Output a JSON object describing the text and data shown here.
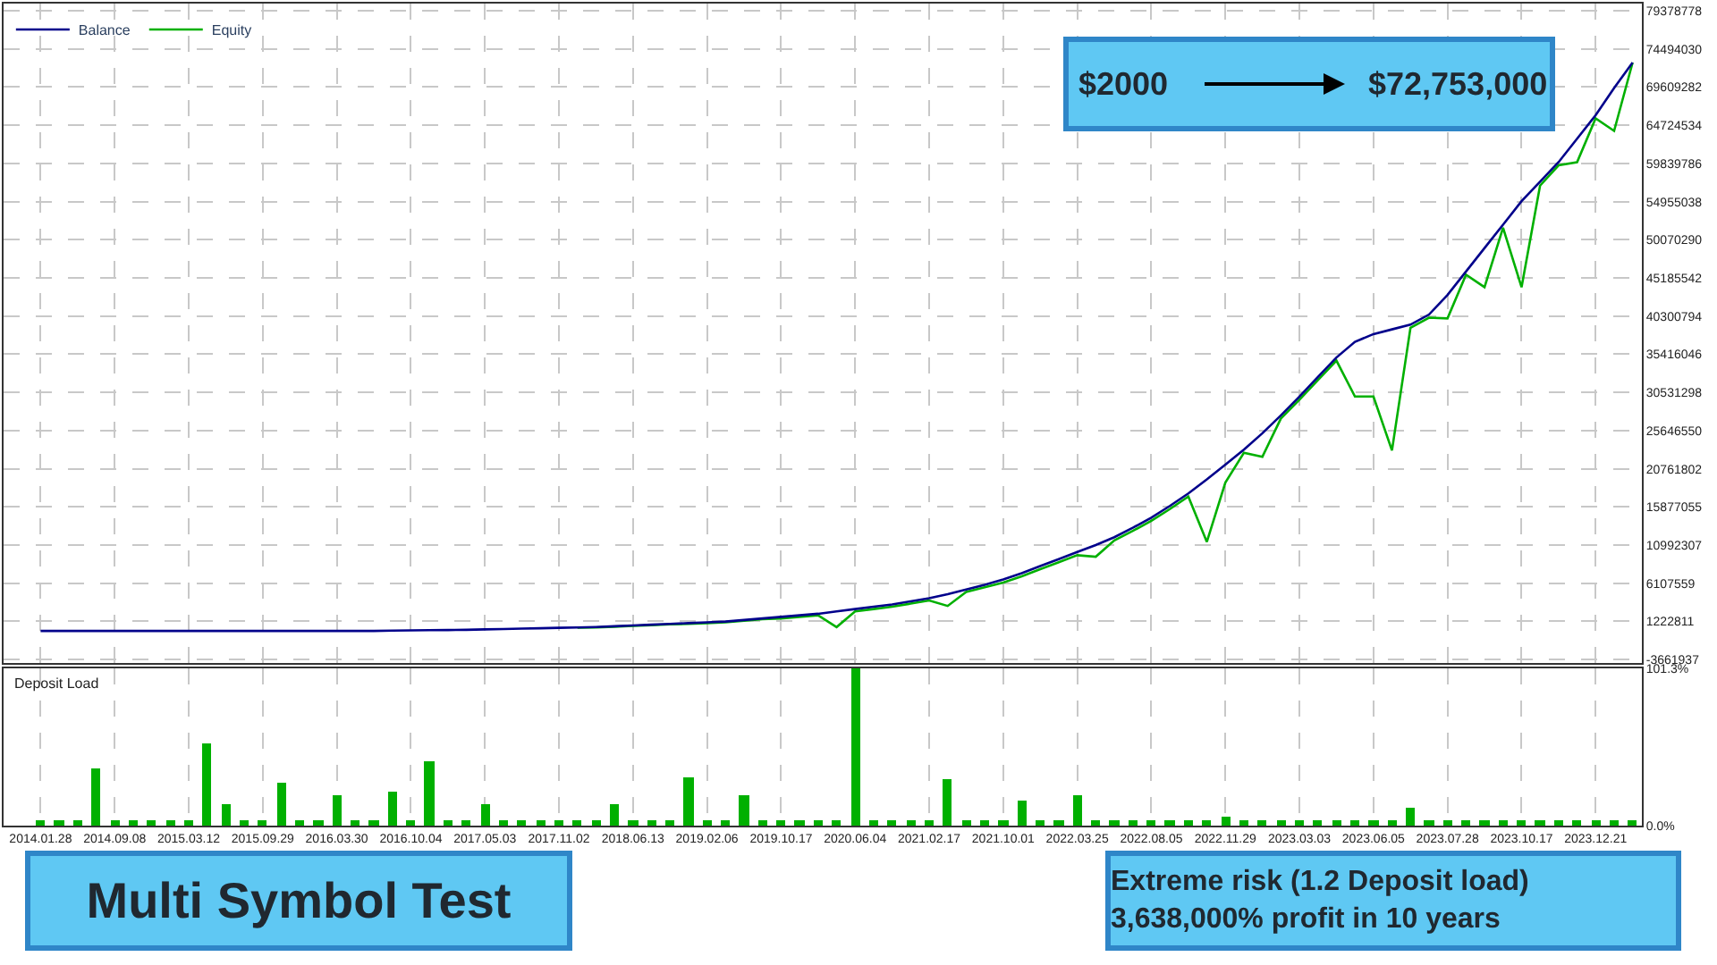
{
  "chart_data": [
    {
      "type": "line",
      "categories": [
        "2014.01.28",
        null,
        null,
        null,
        "2014.09.08",
        null,
        null,
        null,
        "2015.03.12",
        null,
        null,
        null,
        "2015.09.29",
        null,
        null,
        null,
        "2016.03.30",
        null,
        null,
        null,
        "2016.10.04",
        null,
        null,
        null,
        "2017.05.03",
        null,
        null,
        null,
        "2017.11.02",
        null,
        null,
        null,
        "2018.06.13",
        null,
        null,
        null,
        "2019.02.06",
        null,
        null,
        null,
        "2019.10.17",
        null,
        null,
        null,
        "2020.06.04",
        null,
        null,
        null,
        "2021.02.17",
        null,
        null,
        null,
        "2021.10.01",
        null,
        null,
        null,
        "2022.03.25",
        null,
        null,
        null,
        "2022.08.05",
        null,
        null,
        null,
        "2022.11.29",
        null,
        null,
        null,
        "2023.03.03",
        null,
        null,
        null,
        "2023.06.05",
        null,
        null,
        null,
        "2023.07.28",
        null,
        null,
        null,
        "2023.10.17",
        null,
        null,
        null,
        "2023.12.21",
        null,
        null
      ],
      "series": [
        {
          "name": "Balance",
          "color": "#00008b",
          "values": [
            2000,
            2000,
            2000,
            2000,
            2000,
            2000,
            2000,
            2000,
            2000,
            2000,
            2000,
            2000,
            2000,
            2000,
            2000,
            2000,
            2000,
            2000,
            2000,
            50000,
            80000,
            100000,
            120000,
            150000,
            200000,
            250000,
            300000,
            350000,
            400000,
            450000,
            500000,
            600000,
            700000,
            800000,
            900000,
            1000000,
            1100000,
            1200000,
            1400000,
            1600000,
            1800000,
            2000000,
            2200000,
            2500000,
            2800000,
            3100000,
            3400000,
            3800000,
            4200000,
            4700000,
            5300000,
            5900000,
            6600000,
            7400000,
            8300000,
            9200000,
            10100000,
            11000000,
            12000000,
            13200000,
            14500000,
            16000000,
            17600000,
            19400000,
            21300000,
            23200000,
            25300000,
            27600000,
            30000000,
            32500000,
            35000000,
            37000000,
            38000000,
            38600000,
            39200000,
            40500000,
            43000000,
            46000000,
            49000000,
            52000000,
            55000000,
            57500000,
            60000000,
            63000000,
            66000000,
            69500000,
            72753000
          ]
        },
        {
          "name": "Equity",
          "color": "#00b000",
          "values": [
            null,
            null,
            null,
            null,
            null,
            null,
            null,
            null,
            null,
            null,
            null,
            null,
            null,
            null,
            null,
            null,
            null,
            null,
            null,
            null,
            null,
            null,
            null,
            null,
            null,
            null,
            null,
            null,
            null,
            420000,
            450000,
            550000,
            650000,
            750000,
            850000,
            900000,
            1000000,
            1100000,
            1300000,
            1500000,
            1600000,
            1800000,
            2000000,
            500000,
            2500000,
            2800000,
            3100000,
            3500000,
            3900000,
            3200000,
            5000000,
            5600000,
            6200000,
            7000000,
            7900000,
            8800000,
            9700000,
            9500000,
            11600000,
            12800000,
            14100000,
            15600000,
            17200000,
            11400000,
            19000000,
            22800000,
            22300000,
            27200000,
            29600000,
            32100000,
            34600000,
            30000000,
            30000000,
            23100000,
            38800000,
            40100000,
            40000000,
            45600000,
            44000000,
            51600000,
            44000000,
            57000000,
            59600000,
            60000000,
            65600000,
            64000000,
            72753000
          ]
        }
      ],
      "ylim": [
        -4100000,
        80300000
      ],
      "yticks": [
        -3661937,
        1222811,
        6107559,
        10992307,
        15877055,
        20761802,
        25646550,
        30531298,
        35416046,
        40300794,
        45185542,
        50070290,
        54955038,
        59839786,
        64724534,
        69609282,
        74494030,
        79378778
      ],
      "grid": true,
      "legend": "top left",
      "tick_labels": "y",
      "annotations": [
        "$2000",
        "$72,753,000"
      ]
    },
    {
      "type": "bar",
      "title": "Deposit Load",
      "categories": [
        "2014.01.28",
        null,
        null,
        null,
        "2014.09.08",
        null,
        null,
        null,
        "2015.03.12",
        null,
        null,
        null,
        "2015.09.29",
        null,
        null,
        null,
        "2016.03.30",
        null,
        null,
        null,
        "2016.10.04",
        null,
        null,
        null,
        "2017.05.03",
        null,
        null,
        null,
        "2017.11.02",
        null,
        null,
        null,
        "2018.06.13",
        null,
        null,
        null,
        "2019.02.06",
        null,
        null,
        null,
        "2019.10.17",
        null,
        null,
        null,
        "2020.06.04",
        null,
        null,
        null,
        "2021.02.17",
        null,
        null,
        null,
        "2021.10.01",
        null,
        null,
        null,
        "2022.03.25",
        null,
        null,
        null,
        "2022.08.05",
        null,
        null,
        null,
        "2022.11.29",
        null,
        null,
        null,
        "2023.03.03",
        null,
        null,
        null,
        "2023.06.05",
        null,
        null,
        null,
        "2023.07.28",
        null,
        null,
        null,
        "2023.10.17",
        null,
        null,
        null,
        "2023.12.21",
        null,
        null
      ],
      "color": "#00b000",
      "values": [
        3,
        3,
        3,
        37,
        3,
        3,
        3,
        3,
        3,
        53,
        14,
        3,
        3,
        28,
        3,
        3,
        19,
        3,
        3,
        22,
        3,
        41,
        3,
        3,
        14,
        3,
        3,
        3,
        3,
        3,
        3,
        14,
        3,
        3,
        3,
        31,
        3,
        3,
        20,
        3,
        3,
        3,
        3,
        3,
        101.3,
        3,
        3,
        3,
        3,
        30,
        3,
        3,
        3,
        16,
        3,
        3,
        20,
        3,
        3,
        3,
        3,
        3,
        3,
        3,
        6,
        3,
        3,
        3,
        3,
        3,
        3,
        3,
        3,
        3,
        12,
        3,
        3,
        3,
        3,
        3,
        3,
        3,
        3,
        3,
        3,
        3,
        3
      ],
      "ylim": [
        0,
        101.3
      ],
      "yticks": [
        {
          "value": 0,
          "label": "0.0%"
        },
        {
          "value": 101.3,
          "label": "101.3%"
        }
      ],
      "grid": true,
      "annotations": [
        "Multi Symbol Test",
        "Extreme risk (1.2 Deposit load)\n3,638,000% profit in 10 years"
      ]
    }
  ]
}
